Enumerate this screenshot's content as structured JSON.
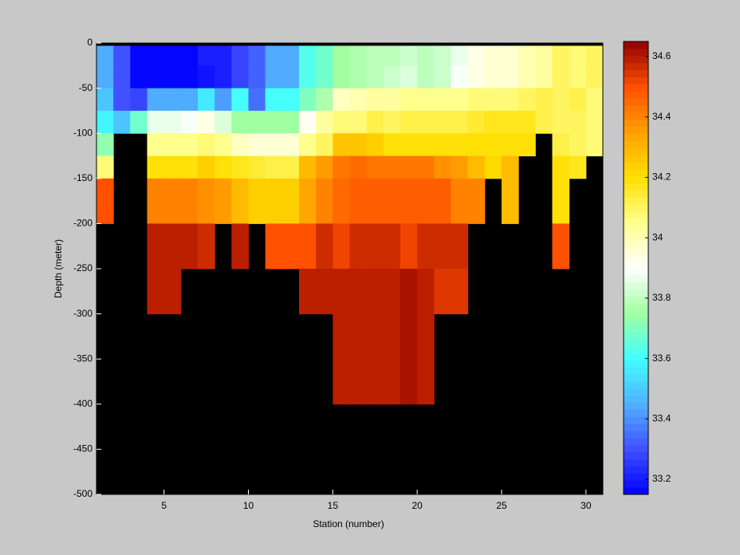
{
  "chart_data": {
    "type": "heatmap",
    "xlabel": "Station (number)",
    "ylabel": "Depth (meter)",
    "xlim": [
      1,
      31
    ],
    "xticks": [
      5,
      10,
      15,
      20,
      25,
      30
    ],
    "ylim": [
      -500,
      0
    ],
    "yticks": [
      0,
      -50,
      -100,
      -150,
      -200,
      -250,
      -300,
      -350,
      -400,
      -450,
      -500
    ],
    "clim": [
      33.15,
      34.65
    ],
    "cticks": [
      33.2,
      33.4,
      33.6,
      33.8,
      34,
      34.2,
      34.4,
      34.6
    ],
    "colormap": [
      "#0000ff",
      "#4050ff",
      "#50b0ff",
      "#40ffff",
      "#a0ffa0",
      "#ffffff",
      "#ffff90",
      "#ffe000",
      "#ffa000",
      "#ff5000",
      "#900000"
    ],
    "x": [
      1,
      2,
      3,
      4,
      5,
      6,
      7,
      8,
      9,
      10,
      11,
      12,
      13,
      14,
      15,
      16,
      17,
      18,
      19,
      20,
      21,
      22,
      23,
      24,
      25,
      26,
      27,
      28,
      29,
      30,
      31
    ],
    "y": [
      -3,
      -25,
      -50,
      -75,
      -100,
      -125,
      -150,
      -200,
      -250,
      -300,
      -400
    ],
    "z": [
      [
        33.45,
        33.3,
        33.17,
        33.17,
        33.17,
        33.17,
        33.2,
        33.22,
        33.27,
        33.32,
        33.45,
        33.45,
        33.62,
        33.68,
        33.74,
        33.77,
        33.8,
        33.8,
        33.82,
        33.8,
        33.82,
        33.87,
        33.93,
        33.95,
        33.97,
        34.0,
        34.03,
        34.1,
        34.08,
        34.1
      ],
      [
        33.45,
        33.3,
        33.17,
        33.17,
        33.17,
        33.17,
        33.18,
        33.2,
        33.27,
        33.32,
        33.45,
        33.45,
        33.62,
        33.68,
        33.74,
        33.78,
        33.8,
        33.82,
        33.85,
        33.8,
        33.82,
        33.88,
        33.93,
        33.95,
        33.97,
        34.0,
        34.03,
        34.1,
        34.08,
        34.1
      ],
      [
        33.5,
        33.3,
        33.28,
        33.45,
        33.45,
        33.45,
        33.55,
        33.42,
        33.6,
        33.36,
        33.6,
        33.6,
        33.7,
        33.78,
        33.98,
        34.0,
        34.02,
        34.02,
        34.05,
        34.05,
        34.05,
        34.05,
        34.07,
        34.08,
        34.08,
        34.11,
        34.12,
        34.1,
        34.12,
        34.07
      ],
      [
        33.58,
        33.5,
        33.68,
        33.86,
        33.86,
        33.88,
        33.93,
        33.84,
        33.74,
        33.74,
        33.74,
        33.74,
        33.9,
        34.02,
        34.07,
        34.08,
        34.12,
        34.1,
        34.13,
        34.13,
        34.13,
        34.13,
        34.15,
        34.16,
        34.16,
        34.16,
        34.12,
        34.1,
        34.1,
        34.08
      ],
      [
        33.72,
        null,
        null,
        34.05,
        34.05,
        34.05,
        34.07,
        34.05,
        33.98,
        33.96,
        33.96,
        33.96,
        34.05,
        34.1,
        34.27,
        34.27,
        34.24,
        34.2,
        34.2,
        34.2,
        34.2,
        34.2,
        34.2,
        34.2,
        34.2,
        34.2,
        null,
        34.12,
        34.1,
        34.07
      ],
      [
        34.07,
        null,
        null,
        34.2,
        34.2,
        34.2,
        34.23,
        34.2,
        34.17,
        34.14,
        34.13,
        34.13,
        34.28,
        34.35,
        34.42,
        34.45,
        34.42,
        34.42,
        34.42,
        34.42,
        34.38,
        34.35,
        34.28,
        34.22,
        34.28,
        null,
        null,
        34.2,
        34.17,
        null
      ],
      [
        34.5,
        null,
        null,
        34.4,
        34.4,
        34.4,
        34.38,
        34.35,
        34.28,
        34.25,
        34.24,
        34.24,
        34.34,
        34.4,
        34.46,
        34.48,
        34.47,
        34.47,
        34.47,
        34.47,
        34.47,
        34.4,
        34.4,
        null,
        34.28,
        null,
        null,
        34.2,
        null,
        null
      ],
      [
        null,
        null,
        null,
        34.58,
        34.58,
        34.58,
        34.56,
        null,
        34.58,
        null,
        34.5,
        34.5,
        34.5,
        34.56,
        34.53,
        34.56,
        34.56,
        34.56,
        34.53,
        34.56,
        34.56,
        34.56,
        null,
        null,
        null,
        null,
        null,
        34.5,
        null,
        null
      ],
      [
        null,
        null,
        null,
        34.6,
        34.6,
        null,
        null,
        null,
        null,
        null,
        null,
        null,
        34.58,
        34.58,
        34.6,
        34.6,
        34.6,
        34.58,
        34.61,
        34.58,
        34.55,
        34.54,
        null,
        null,
        null,
        null,
        null,
        null,
        null,
        null
      ],
      [
        null,
        null,
        null,
        null,
        null,
        null,
        null,
        null,
        null,
        null,
        null,
        null,
        null,
        null,
        34.6,
        34.6,
        34.6,
        34.58,
        34.62,
        34.58,
        null,
        null,
        null,
        null,
        null,
        null,
        null,
        null,
        null,
        null
      ]
    ]
  }
}
